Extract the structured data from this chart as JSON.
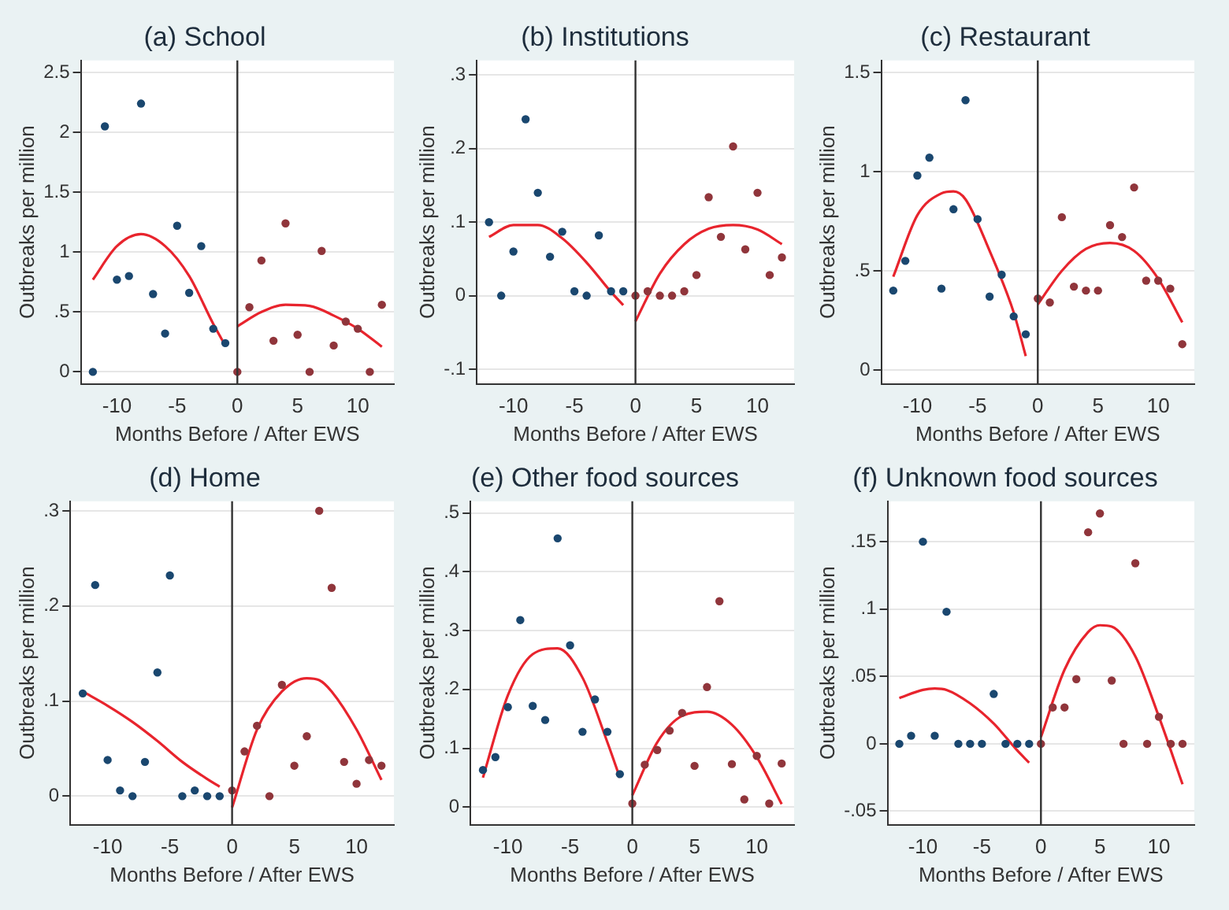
{
  "chart_data": [
    {
      "type": "scatter",
      "title": "(a) School",
      "xlabel": "Months Before / After EWS",
      "ylabel": "Outbreaks per million",
      "xlim": [
        -13,
        13
      ],
      "xticks": [
        -10,
        -5,
        0,
        5,
        10
      ],
      "ylim": [
        -0.1,
        2.6
      ],
      "yticks": [
        0,
        {
          "value": 0.5,
          "label": ".5"
        },
        1,
        1.5,
        2,
        2.5
      ],
      "grid": "y",
      "marker": "circle",
      "ref_lines": [
        {
          "axis": "x",
          "value": 0,
          "color": "#333333"
        }
      ],
      "series": [
        {
          "color": "#1a476f",
          "x": [
            -12,
            -11,
            -10,
            -9,
            -8,
            -7,
            -6,
            -5,
            -4,
            -3,
            -2,
            -1
          ],
          "values": [
            0,
            2.05,
            0.77,
            0.8,
            2.24,
            0.65,
            0.32,
            1.22,
            0.66,
            1.05,
            0.36,
            0.24
          ]
        },
        {
          "color": "#90353b",
          "x": [
            0,
            1,
            2,
            3,
            4,
            5,
            6,
            7,
            8,
            9,
            10,
            11,
            12
          ],
          "values": [
            0,
            0.54,
            0.93,
            0.26,
            1.24,
            0.31,
            0,
            1.01,
            0.22,
            0.42,
            0.36,
            0,
            0.56
          ]
        },
        {
          "type": "line",
          "marker": "none",
          "color": "#e8242d",
          "x": [
            -12,
            -10,
            -8,
            -6,
            -4,
            -2,
            -1
          ],
          "values": [
            0.77,
            1.05,
            1.15,
            1.05,
            0.8,
            0.4,
            0.22
          ]
        },
        {
          "type": "line",
          "marker": "none",
          "color": "#e8242d",
          "x": [
            0,
            2,
            4,
            6,
            8,
            10,
            12
          ],
          "values": [
            0.38,
            0.5,
            0.56,
            0.55,
            0.47,
            0.36,
            0.21
          ]
        }
      ]
    },
    {
      "type": "scatter",
      "title": "(b) Institutions",
      "xlabel": "Months Before / After EWS",
      "ylabel": "Outbreaks per million",
      "xlim": [
        -13,
        13
      ],
      "xticks": [
        -10,
        -5,
        0,
        5,
        10
      ],
      "ylim": [
        -0.12,
        0.32
      ],
      "yticks": [
        {
          "value": -0.1,
          "label": "-.1"
        },
        0,
        {
          "value": 0.1,
          "label": ".1"
        },
        {
          "value": 0.2,
          "label": ".2"
        },
        {
          "value": 0.3,
          "label": ".3"
        }
      ],
      "grid": "y",
      "marker": "circle",
      "ref_lines": [
        {
          "axis": "x",
          "value": 0,
          "color": "#333333"
        }
      ],
      "series": [
        {
          "color": "#1a476f",
          "x": [
            -12,
            -11,
            -10,
            -9,
            -8,
            -7,
            -6,
            -5,
            -4,
            -3,
            -2,
            -1
          ],
          "values": [
            0.1,
            0,
            0.06,
            0.24,
            0.14,
            0.053,
            0.087,
            0.006,
            0,
            0.082,
            0.006,
            0.006
          ]
        },
        {
          "color": "#90353b",
          "x": [
            0,
            1,
            2,
            3,
            4,
            5,
            6,
            7,
            8,
            9,
            10,
            11,
            12
          ],
          "values": [
            0,
            0.006,
            0,
            0,
            0.006,
            0.028,
            0.134,
            0.08,
            0.203,
            0.063,
            0.14,
            0.028,
            0.052
          ]
        },
        {
          "type": "line",
          "marker": "none",
          "color": "#e8242d",
          "x": [
            -12,
            -10,
            -8,
            -6,
            -4,
            -2,
            -1
          ],
          "values": [
            0.08,
            0.096,
            0.096,
            0.078,
            0.045,
            0.005,
            -0.013
          ]
        },
        {
          "type": "line",
          "marker": "none",
          "color": "#e8242d",
          "x": [
            0,
            2,
            4,
            6,
            8,
            10,
            12
          ],
          "values": [
            -0.035,
            0.03,
            0.07,
            0.091,
            0.096,
            0.09,
            0.07
          ]
        }
      ]
    },
    {
      "type": "scatter",
      "title": "(c) Restaurant",
      "xlabel": "Months Before / After EWS",
      "ylabel": "Outbreaks per million",
      "xlim": [
        -13,
        13
      ],
      "xticks": [
        -10,
        -5,
        0,
        5,
        10
      ],
      "ylim": [
        -0.07,
        1.56
      ],
      "yticks": [
        0,
        {
          "value": 0.5,
          "label": ".5"
        },
        1,
        1.5
      ],
      "grid": "y",
      "marker": "circle",
      "ref_lines": [
        {
          "axis": "x",
          "value": 0,
          "color": "#333333"
        }
      ],
      "series": [
        {
          "color": "#1a476f",
          "x": [
            -12,
            -11,
            -10,
            -9,
            -8,
            -7,
            -6,
            -5,
            -4,
            -3,
            -2,
            -1
          ],
          "values": [
            0.4,
            0.55,
            0.98,
            1.07,
            0.41,
            0.81,
            1.36,
            0.76,
            0.37,
            0.48,
            0.27,
            0.18
          ]
        },
        {
          "color": "#90353b",
          "x": [
            0,
            1,
            2,
            3,
            4,
            5,
            6,
            7,
            8,
            9,
            10,
            11,
            12
          ],
          "values": [
            0.36,
            0.34,
            0.77,
            0.42,
            0.4,
            0.4,
            0.73,
            0.67,
            0.92,
            0.45,
            0.45,
            0.41,
            0.13
          ]
        },
        {
          "type": "line",
          "marker": "none",
          "color": "#e8242d",
          "x": [
            -12,
            -10,
            -8,
            -7,
            -6,
            -4,
            -2,
            -1
          ],
          "values": [
            0.47,
            0.78,
            0.89,
            0.9,
            0.86,
            0.6,
            0.29,
            0.07
          ]
        },
        {
          "type": "line",
          "marker": "none",
          "color": "#e8242d",
          "x": [
            0,
            2,
            4,
            6,
            8,
            10,
            12
          ],
          "values": [
            0.33,
            0.5,
            0.61,
            0.64,
            0.6,
            0.46,
            0.24
          ]
        }
      ]
    },
    {
      "type": "scatter",
      "title": "(d) Home",
      "xlabel": "Months Before / After EWS",
      "ylabel": "Outbreaks per million",
      "xlim": [
        -13,
        13
      ],
      "xticks": [
        -10,
        -5,
        0,
        5,
        10
      ],
      "ylim": [
        -0.03,
        0.31
      ],
      "yticks": [
        0,
        {
          "value": 0.1,
          "label": ".1"
        },
        {
          "value": 0.2,
          "label": ".2"
        },
        {
          "value": 0.3,
          "label": ".3"
        }
      ],
      "grid": "y",
      "marker": "circle",
      "ref_lines": [
        {
          "axis": "x",
          "value": 0,
          "color": "#333333"
        }
      ],
      "series": [
        {
          "color": "#1a476f",
          "x": [
            -12,
            -11,
            -10,
            -9,
            -8,
            -7,
            -6,
            -5,
            -4,
            -3,
            -2,
            -1
          ],
          "values": [
            0.108,
            0.222,
            0.038,
            0.006,
            0,
            0.036,
            0.13,
            0.232,
            0,
            0.006,
            0,
            0
          ]
        },
        {
          "color": "#90353b",
          "x": [
            0,
            1,
            2,
            3,
            4,
            5,
            6,
            7,
            8,
            9,
            10,
            11,
            12
          ],
          "values": [
            0.006,
            0.047,
            0.074,
            0,
            0.117,
            0.032,
            0.063,
            0.3,
            0.219,
            0.036,
            0.013,
            0.038,
            0.032
          ]
        },
        {
          "type": "line",
          "marker": "none",
          "color": "#e8242d",
          "x": [
            -12,
            -10,
            -8,
            -6,
            -4,
            -2,
            -1
          ],
          "values": [
            0.11,
            0.095,
            0.078,
            0.058,
            0.036,
            0.018,
            0.01
          ]
        },
        {
          "type": "line",
          "marker": "none",
          "color": "#e8242d",
          "x": [
            0,
            2,
            4,
            6,
            7,
            8,
            10,
            12
          ],
          "values": [
            -0.012,
            0.07,
            0.11,
            0.124,
            0.122,
            0.11,
            0.07,
            0.017
          ]
        }
      ]
    },
    {
      "type": "scatter",
      "title": "(e) Other food sources",
      "xlabel": "Months Before / After EWS",
      "ylabel": "Outbreaks per million",
      "xlim": [
        -13,
        13
      ],
      "xticks": [
        -10,
        -5,
        0,
        5,
        10
      ],
      "ylim": [
        -0.03,
        0.52
      ],
      "yticks": [
        0,
        {
          "value": 0.1,
          "label": ".1"
        },
        {
          "value": 0.2,
          "label": ".2"
        },
        {
          "value": 0.3,
          "label": ".3"
        },
        {
          "value": 0.4,
          "label": ".4"
        },
        {
          "value": 0.5,
          "label": ".5"
        }
      ],
      "grid": "y",
      "marker": "circle",
      "ref_lines": [
        {
          "axis": "x",
          "value": 0,
          "color": "#333333"
        }
      ],
      "series": [
        {
          "color": "#1a476f",
          "x": [
            -12,
            -11,
            -10,
            -9,
            -8,
            -7,
            -6,
            -5,
            -4,
            -3,
            -2,
            -1
          ],
          "values": [
            0.063,
            0.085,
            0.17,
            0.318,
            0.172,
            0.148,
            0.457,
            0.275,
            0.128,
            0.183,
            0.128,
            0.056
          ]
        },
        {
          "color": "#90353b",
          "x": [
            0,
            1,
            2,
            3,
            4,
            5,
            6,
            7,
            8,
            9,
            10,
            11,
            12
          ],
          "values": [
            0.006,
            0.072,
            0.097,
            0.13,
            0.16,
            0.07,
            0.204,
            0.35,
            0.073,
            0.013,
            0.087,
            0.006,
            0.074
          ]
        },
        {
          "type": "line",
          "marker": "none",
          "color": "#e8242d",
          "x": [
            -12,
            -10,
            -8,
            -6,
            -4,
            -2,
            -1
          ],
          "values": [
            0.05,
            0.19,
            0.26,
            0.27,
            0.22,
            0.11,
            0.05
          ]
        },
        {
          "type": "line",
          "marker": "none",
          "color": "#e8242d",
          "x": [
            0,
            2,
            4,
            6,
            8,
            10,
            12
          ],
          "values": [
            0.02,
            0.11,
            0.155,
            0.162,
            0.14,
            0.085,
            0.005
          ]
        }
      ]
    },
    {
      "type": "scatter",
      "title": "(f) Unknown food sources",
      "xlabel": "Months Before / After EWS",
      "ylabel": "Outbreaks per million",
      "xlim": [
        -13,
        13
      ],
      "xticks": [
        -10,
        -5,
        0,
        5,
        10
      ],
      "ylim": [
        -0.06,
        0.18
      ],
      "yticks": [
        {
          "value": -0.05,
          "label": "-.05"
        },
        0,
        {
          "value": 0.05,
          "label": ".05"
        },
        {
          "value": 0.1,
          "label": ".1"
        },
        {
          "value": 0.15,
          "label": ".15"
        }
      ],
      "grid": "y",
      "marker": "circle",
      "ref_lines": [
        {
          "axis": "x",
          "value": 0,
          "color": "#333333"
        }
      ],
      "series": [
        {
          "color": "#1a476f",
          "x": [
            -12,
            -11,
            -10,
            -9,
            -8,
            -7,
            -6,
            -5,
            -4,
            -3,
            -2,
            -1
          ],
          "values": [
            0,
            0.006,
            0.15,
            0.006,
            0.098,
            0,
            0,
            0,
            0.037,
            0,
            0,
            0
          ]
        },
        {
          "color": "#90353b",
          "x": [
            0,
            1,
            2,
            3,
            4,
            5,
            6,
            7,
            8,
            9,
            10,
            11,
            12
          ],
          "values": [
            0,
            0.027,
            0.027,
            0.048,
            0.157,
            0.171,
            0.047,
            0,
            0.134,
            0,
            0.02,
            0,
            0
          ]
        },
        {
          "type": "line",
          "marker": "none",
          "color": "#e8242d",
          "x": [
            -12,
            -10,
            -9,
            -8,
            -6,
            -4,
            -2,
            -1
          ],
          "values": [
            0.034,
            0.04,
            0.041,
            0.04,
            0.03,
            0.015,
            -0.005,
            -0.014
          ]
        },
        {
          "type": "line",
          "marker": "none",
          "color": "#e8242d",
          "x": [
            0,
            2,
            4,
            5,
            6,
            8,
            10,
            12
          ],
          "values": [
            0.005,
            0.055,
            0.083,
            0.088,
            0.087,
            0.065,
            0.02,
            -0.03
          ]
        }
      ]
    }
  ]
}
